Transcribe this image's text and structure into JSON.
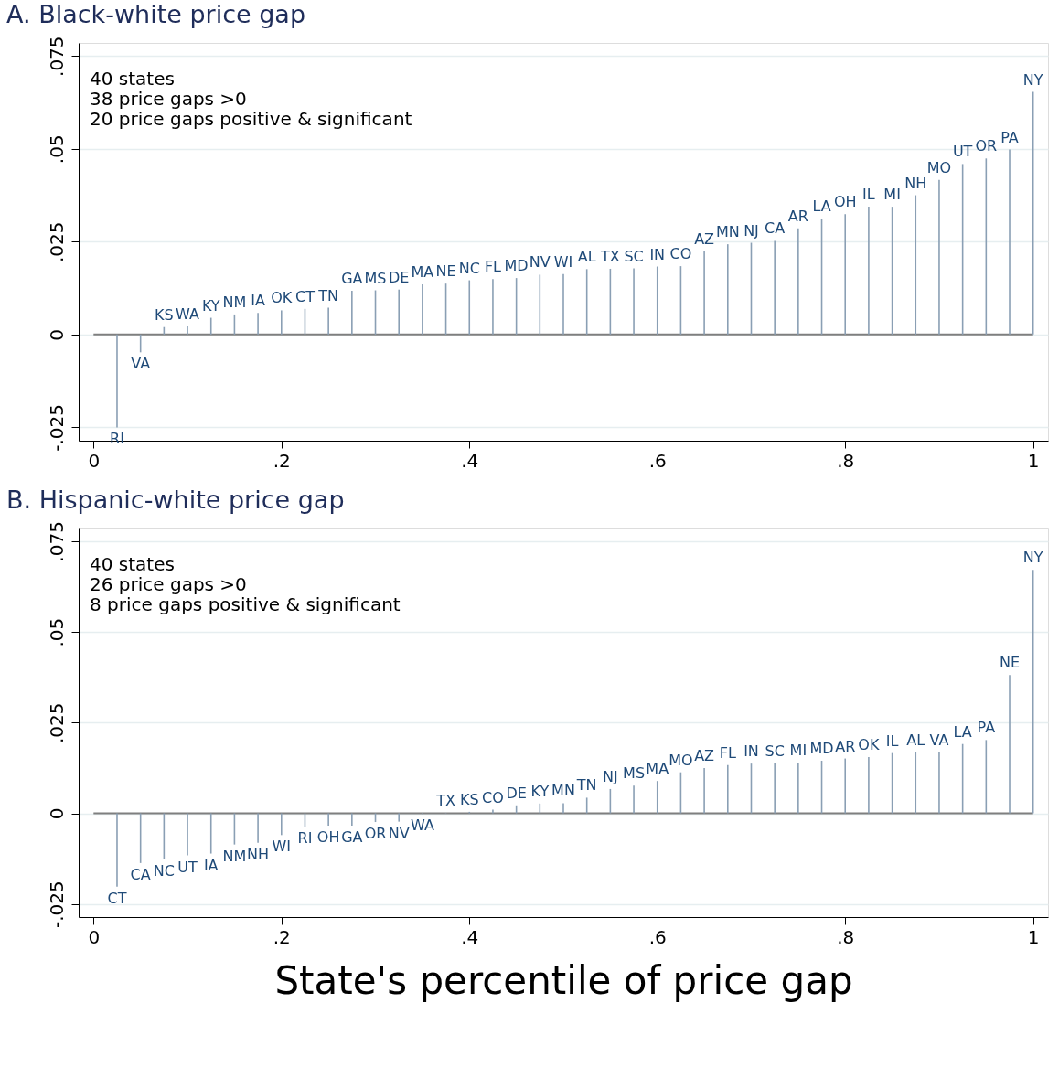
{
  "chart_data": [
    {
      "type": "bar",
      "title": "A. Black-white price gap",
      "marker": "none",
      "grid": "y",
      "x": [
        0.025,
        0.05,
        0.075,
        0.1,
        0.125,
        0.15,
        0.175,
        0.2,
        0.225,
        0.25,
        0.275,
        0.3,
        0.325,
        0.35,
        0.375,
        0.4,
        0.425,
        0.45,
        0.475,
        0.5,
        0.525,
        0.55,
        0.575,
        0.6,
        0.625,
        0.65,
        0.675,
        0.7,
        0.725,
        0.75,
        0.775,
        0.8,
        0.825,
        0.85,
        0.875,
        0.9,
        0.925,
        0.95,
        0.975,
        1
      ],
      "series": [
        {
          "color": "#8a9fb4",
          "values": [
            -0.025,
            -0.0048,
            0.002,
            0.0022,
            0.0045,
            0.0054,
            0.0058,
            0.0065,
            0.0069,
            0.0072,
            0.0118,
            0.0119,
            0.0121,
            0.0135,
            0.0137,
            0.0146,
            0.0149,
            0.0152,
            0.0161,
            0.0163,
            0.0176,
            0.0177,
            0.0178,
            0.0183,
            0.0184,
            0.0224,
            0.0243,
            0.0247,
            0.0252,
            0.0286,
            0.0312,
            0.0324,
            0.0344,
            0.0344,
            0.0375,
            0.0416,
            0.0459,
            0.0474,
            0.0498,
            0.0653
          ],
          "value_labels": [
            "RI",
            "VA",
            "KS",
            "WA",
            "KY",
            "NM",
            "IA",
            "OK",
            "CT",
            "TN",
            "GA",
            "MS",
            "DE",
            "MA",
            "NE",
            "NC",
            "FL",
            "MD",
            "NV",
            "WI",
            "AL",
            "TX",
            "SC",
            "IN",
            "CO",
            "AZ",
            "MN",
            "NJ",
            "CA",
            "AR",
            "LA",
            "OH",
            "IL",
            "MI",
            "NH",
            "MO",
            "UT",
            "OR",
            "PA",
            "NY"
          ]
        }
      ],
      "xlim": [
        -0.011,
        1.011
      ],
      "xticks": [
        0,
        {
          "value": 0.2,
          "label": ".2"
        },
        {
          "value": 0.4,
          "label": ".4"
        },
        {
          "value": 0.6,
          "label": ".6"
        },
        {
          "value": 0.8,
          "label": ".8"
        },
        1
      ],
      "ylim": [
        -0.0286,
        0.0785
      ],
      "yticks": [
        {
          "value": -0.025,
          "label": "-.025"
        },
        0,
        {
          "value": 0.025,
          "label": ".025"
        },
        {
          "value": 0.05,
          "label": ".05"
        },
        {
          "value": 0.075,
          "label": ".075"
        }
      ],
      "ref_lines": [
        {
          "axis": "y",
          "value": 0,
          "color": "#7f7f7f"
        }
      ],
      "annotations": [
        "40 states",
        "38 price gaps >0",
        "20 price gaps positive & significant"
      ]
    },
    {
      "type": "bar",
      "title": "B. Hispanic-white price gap",
      "xlabel": "State's percentile of price gap",
      "marker": "none",
      "grid": "y",
      "x": [
        0.025,
        0.05,
        0.075,
        0.1,
        0.125,
        0.15,
        0.175,
        0.2,
        0.225,
        0.25,
        0.275,
        0.3,
        0.325,
        0.35,
        0.375,
        0.4,
        0.425,
        0.45,
        0.475,
        0.5,
        0.525,
        0.55,
        0.575,
        0.6,
        0.625,
        0.65,
        0.675,
        0.7,
        0.725,
        0.75,
        0.775,
        0.8,
        0.825,
        0.85,
        0.875,
        0.9,
        0.925,
        0.95,
        0.975,
        1
      ],
      "series": [
        {
          "color": "#8a9fb4",
          "values": [
            -0.0202,
            -0.0137,
            -0.0126,
            -0.0116,
            -0.0111,
            -0.0086,
            -0.0081,
            -0.006,
            -0.0037,
            -0.0034,
            -0.0034,
            -0.0024,
            -0.0023,
            -0.0002,
            0.0001,
            0.0004,
            0.001,
            0.0022,
            0.0027,
            0.0028,
            0.0043,
            0.0067,
            0.0076,
            0.0089,
            0.0113,
            0.0125,
            0.0133,
            0.0137,
            0.0138,
            0.0139,
            0.0145,
            0.0151,
            0.0155,
            0.0166,
            0.0168,
            0.0168,
            0.0191,
            0.0202,
            0.0381,
            0.0671
          ],
          "value_labels": [
            "CT",
            "CA",
            "NC",
            "UT",
            "IA",
            "NM",
            "NH",
            "WI",
            "RI",
            "OH",
            "GA",
            "OR",
            "NV",
            "WA",
            "TX",
            "KS",
            "CO",
            "DE",
            "KY",
            "MN",
            "TN",
            "NJ",
            "MS",
            "MA",
            "MO",
            "AZ",
            "FL",
            "IN",
            "SC",
            "MI",
            "MD",
            "AR",
            "OK",
            "IL",
            "AL",
            "VA",
            "LA",
            "PA",
            "NE",
            "NY"
          ]
        }
      ],
      "xlim": [
        -0.011,
        1.011
      ],
      "xticks": [
        0,
        {
          "value": 0.2,
          "label": ".2"
        },
        {
          "value": 0.4,
          "label": ".4"
        },
        {
          "value": 0.6,
          "label": ".6"
        },
        {
          "value": 0.8,
          "label": ".8"
        },
        1
      ],
      "ylim": [
        -0.0286,
        0.0785
      ],
      "yticks": [
        {
          "value": -0.025,
          "label": "-.025"
        },
        0,
        {
          "value": 0.025,
          "label": ".025"
        },
        {
          "value": 0.05,
          "label": ".05"
        },
        {
          "value": 0.075,
          "label": ".075"
        }
      ],
      "ref_lines": [
        {
          "axis": "y",
          "value": 0,
          "color": "#7f7f7f"
        }
      ],
      "annotations": [
        "40 states",
        "26 price gaps >0",
        "8 price gaps positive & significant"
      ]
    }
  ]
}
